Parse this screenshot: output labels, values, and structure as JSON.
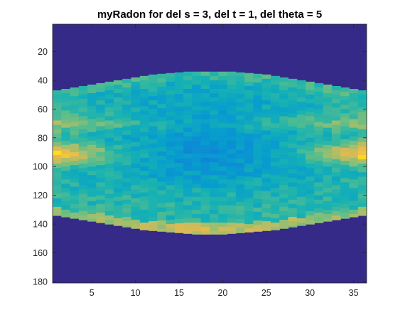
{
  "chart_data": {
    "type": "heatmap",
    "title": "myRadon for del s = 3, del t = 1, del theta = 5",
    "xlabel": "",
    "ylabel": "",
    "colormap": "parula",
    "background_color": "#352A87",
    "xlim": [
      0.5,
      36.5
    ],
    "ylim": [
      1,
      181
    ],
    "y_reversed": true,
    "grid": false,
    "x_ticks": [
      5,
      10,
      15,
      20,
      25,
      30,
      35
    ],
    "x_tick_labels": [
      "5",
      "10",
      "15",
      "20",
      "25",
      "30",
      "35"
    ],
    "y_ticks": [
      20,
      40,
      60,
      80,
      100,
      120,
      140,
      160,
      180
    ],
    "y_tick_labels": [
      "20",
      "40",
      "60",
      "80",
      "100",
      "120",
      "140",
      "160",
      "180"
    ],
    "support_top_row": [
      47,
      46,
      45,
      44,
      43,
      42,
      41,
      40,
      39,
      38,
      37,
      36,
      35.5,
      35,
      34.5,
      34,
      34,
      34,
      34,
      34,
      34,
      34.5,
      35,
      35.5,
      36,
      37,
      38,
      39,
      40,
      41,
      42,
      43,
      44,
      45,
      46,
      47
    ],
    "support_bottom_row": [
      134,
      135,
      136,
      137,
      138,
      139,
      140,
      141,
      142,
      143,
      144,
      144.5,
      145,
      145.5,
      146,
      146.5,
      147,
      147,
      147,
      147,
      146.5,
      146,
      145.5,
      145,
      144.5,
      144,
      143,
      142,
      141,
      140,
      139,
      138,
      137,
      136,
      135,
      134
    ],
    "notes_on_values": "Bright yellow peaks near rows 85-95 at columns 1-4 and 33-36; bright band along lower edge around rows 140-147 at columns 13-24; lowest values (blue) in the center near rows 70-110 at columns 14-24."
  }
}
